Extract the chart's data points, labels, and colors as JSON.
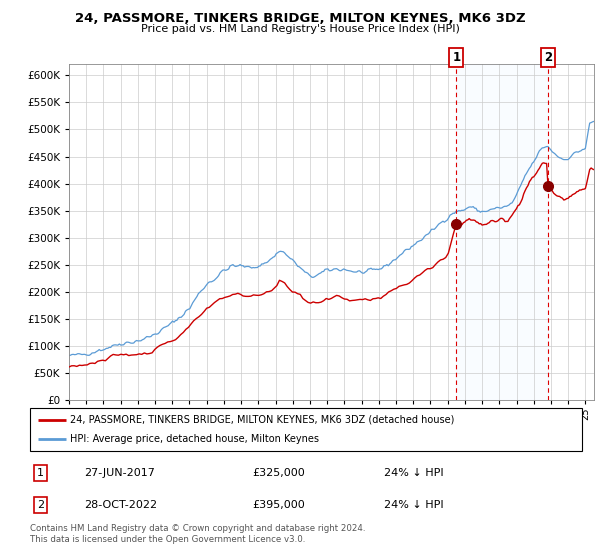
{
  "title": "24, PASSMORE, TINKERS BRIDGE, MILTON KEYNES, MK6 3DZ",
  "subtitle": "Price paid vs. HM Land Registry's House Price Index (HPI)",
  "ylabel_ticks": [
    0,
    50000,
    100000,
    150000,
    200000,
    250000,
    300000,
    350000,
    400000,
    450000,
    500000,
    550000,
    600000
  ],
  "ylim": [
    0,
    620000
  ],
  "xlim_start": 1995.0,
  "xlim_end": 2025.5,
  "legend_label_red": "24, PASSMORE, TINKERS BRIDGE, MILTON KEYNES, MK6 3DZ (detached house)",
  "legend_label_blue": "HPI: Average price, detached house, Milton Keynes",
  "transaction1_label": "1",
  "transaction1_date": "27-JUN-2017",
  "transaction1_price": "£325,000",
  "transaction1_hpi": "24% ↓ HPI",
  "transaction1_year": 2017.5,
  "transaction1_price_val": 325000,
  "transaction2_label": "2",
  "transaction2_date": "28-OCT-2022",
  "transaction2_price": "£395,000",
  "transaction2_hpi": "24% ↓ HPI",
  "transaction2_year": 2022.83,
  "transaction2_price_val": 395000,
  "footnote": "Contains HM Land Registry data © Crown copyright and database right 2024.\nThis data is licensed under the Open Government Licence v3.0.",
  "red_color": "#cc0000",
  "blue_color": "#5b9bd5",
  "shade_color": "#ddeeff",
  "background_color": "#ffffff"
}
